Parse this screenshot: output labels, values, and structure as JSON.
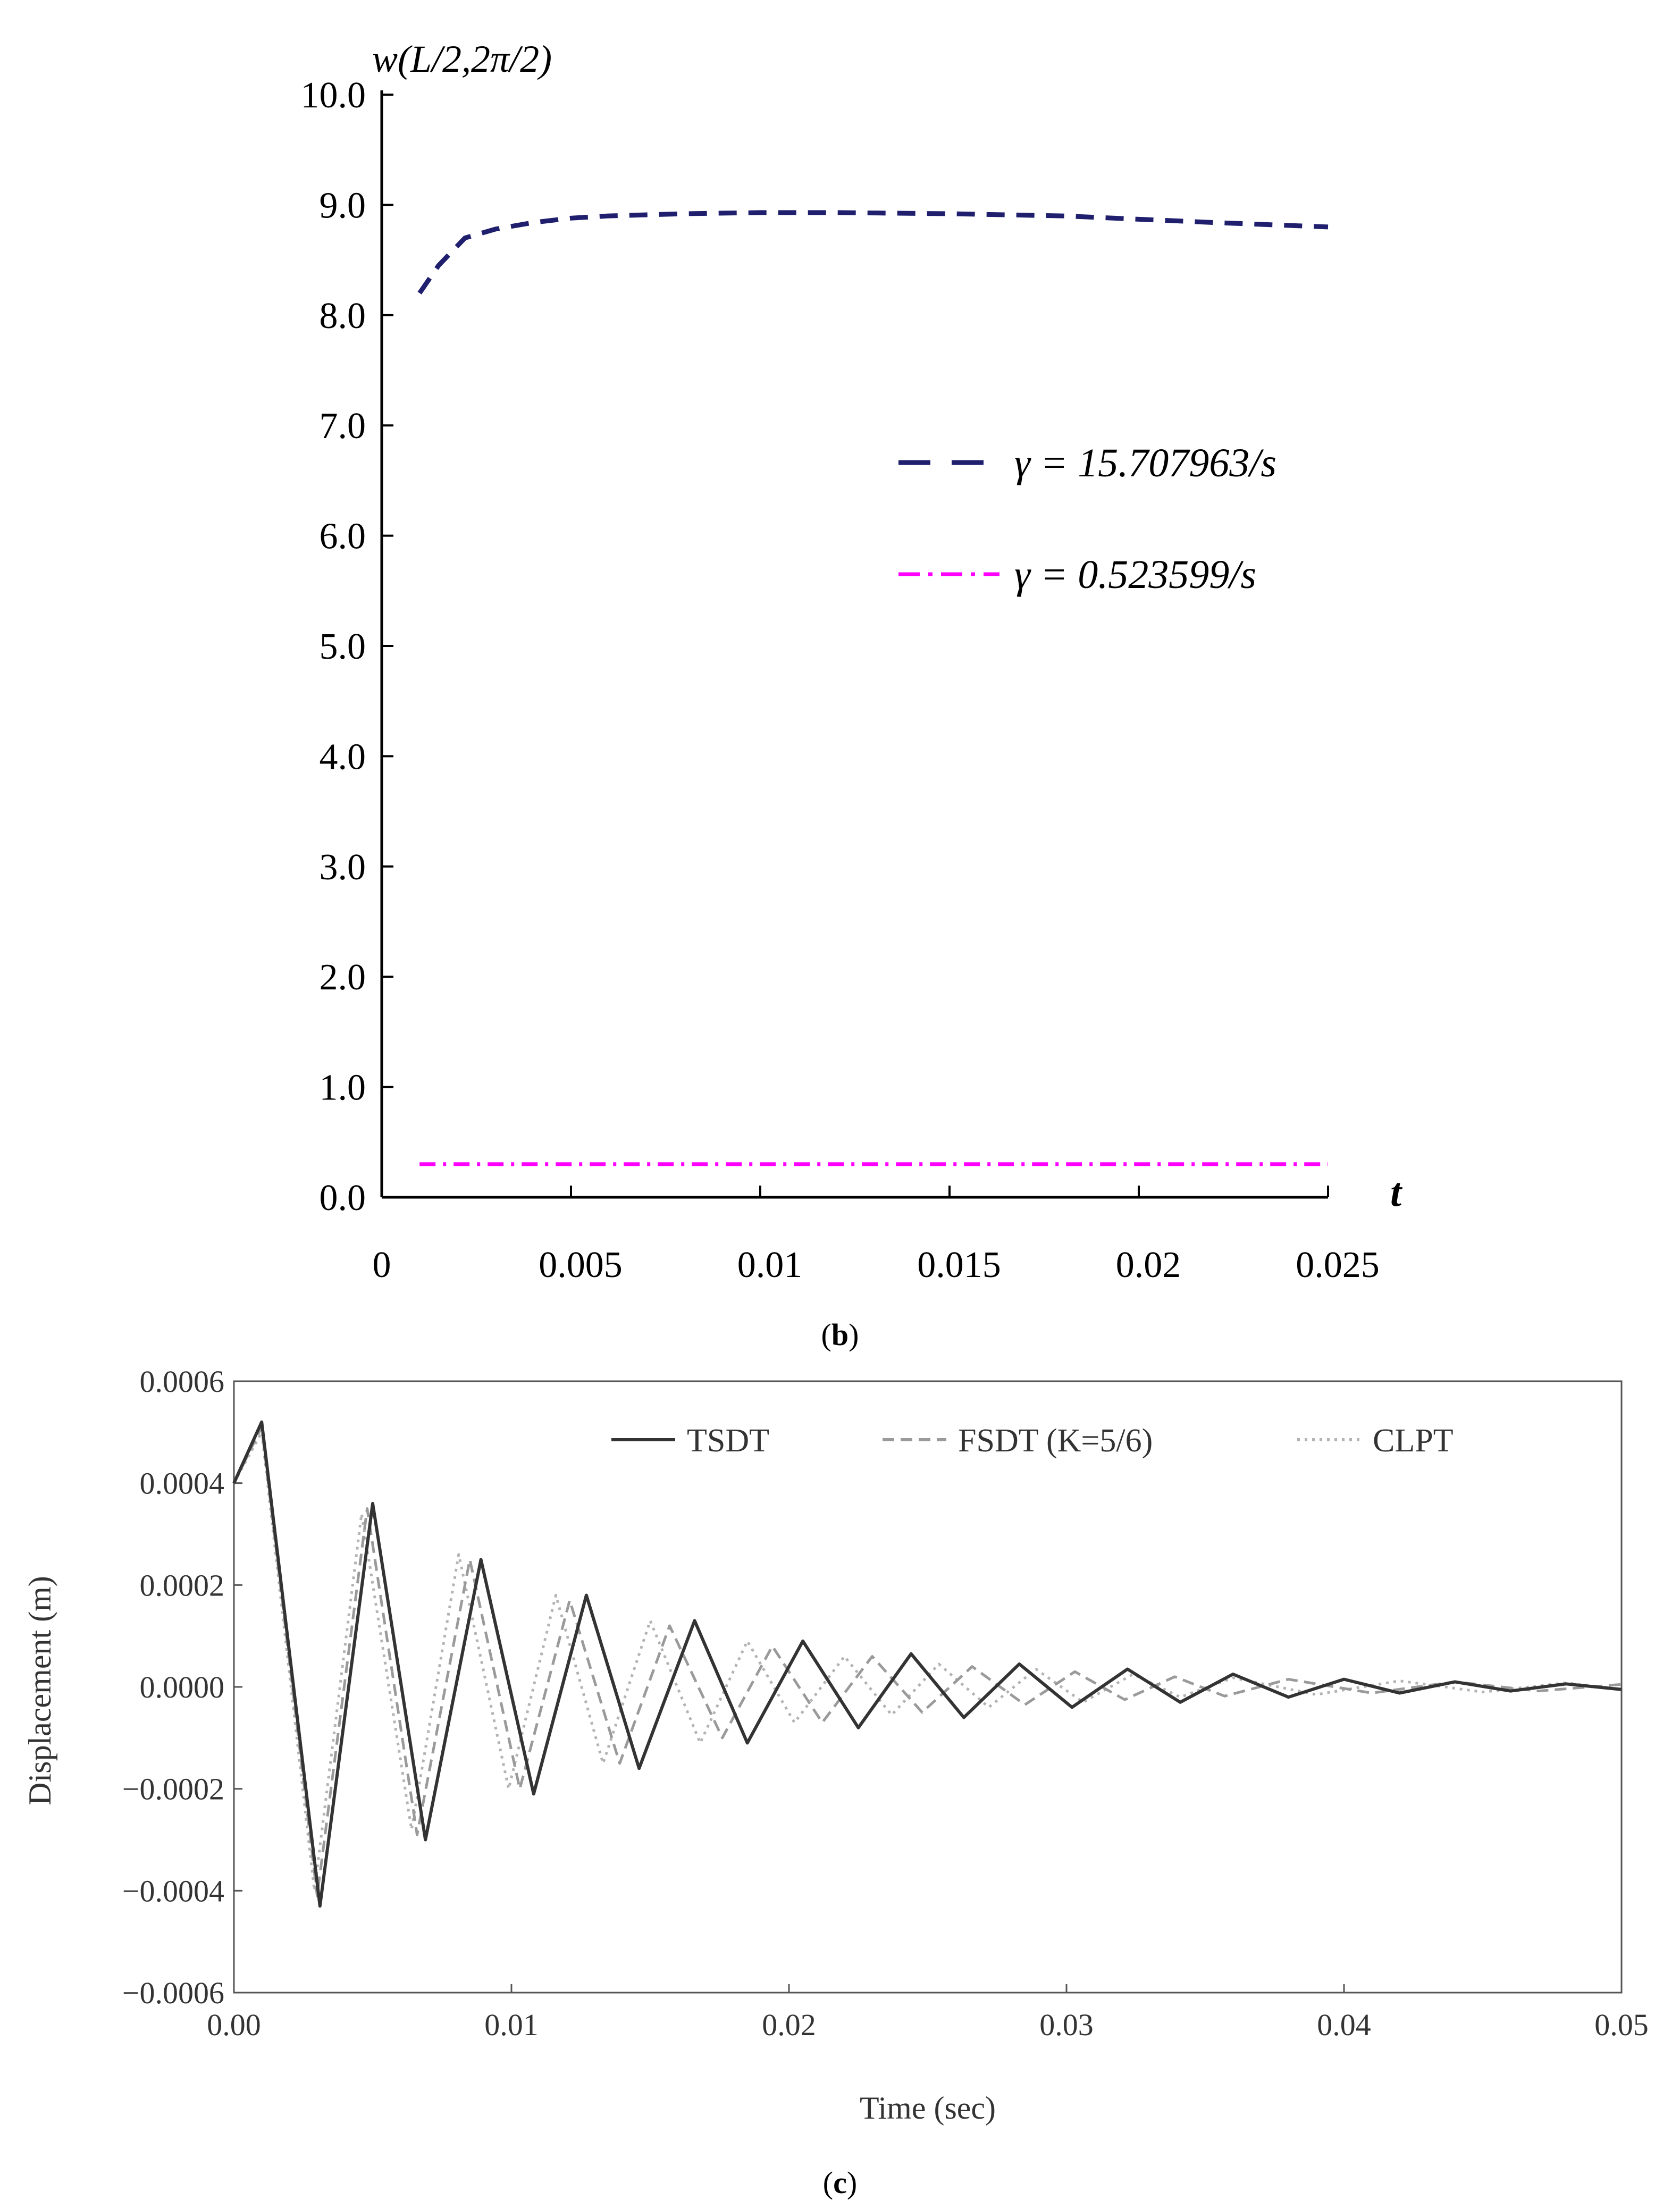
{
  "chart_data": [
    {
      "type": "line",
      "panel_label": "(b)",
      "panel_letter": "b",
      "ylabel": "w(L/2,2π/2)",
      "xlabel": "t",
      "xlim": [
        0,
        0.025
      ],
      "ylim": [
        0,
        10
      ],
      "x_ticks": [
        0,
        0.005,
        0.01,
        0.015,
        0.02,
        0.025
      ],
      "x_tick_labels": [
        "0",
        "0.005",
        "0.01",
        "0.015",
        "0.02",
        "0.025"
      ],
      "y_ticks": [
        0,
        1,
        2,
        3,
        4,
        5,
        6,
        7,
        8,
        9,
        10
      ],
      "y_tick_labels": [
        "0.0",
        "1.0",
        "2.0",
        "3.0",
        "4.0",
        "5.0",
        "6.0",
        "7.0",
        "8.0",
        "9.0",
        "10.0"
      ],
      "legend_position": "center-right",
      "grid": false,
      "series": [
        {
          "name": "γ = 15.707963/s",
          "color": "#1f1f6e",
          "style": "dashed",
          "points": [
            [
              0.001,
              8.2
            ],
            [
              0.0015,
              8.45
            ],
            [
              0.0022,
              8.7
            ],
            [
              0.003,
              8.78
            ],
            [
              0.004,
              8.84
            ],
            [
              0.005,
              8.88
            ],
            [
              0.006,
              8.9
            ],
            [
              0.008,
              8.92
            ],
            [
              0.01,
              8.93
            ],
            [
              0.012,
              8.93
            ],
            [
              0.015,
              8.92
            ],
            [
              0.018,
              8.9
            ],
            [
              0.02,
              8.87
            ],
            [
              0.022,
              8.84
            ],
            [
              0.025,
              8.8
            ]
          ]
        },
        {
          "name": "γ = 0.523599/s",
          "color": "#ff00ff",
          "style": "dashdot",
          "points": [
            [
              0.001,
              0.3
            ],
            [
              0.025,
              0.3
            ]
          ]
        }
      ]
    },
    {
      "type": "line",
      "panel_label": "(c)",
      "panel_letter": "c",
      "xlabel": "Time (sec)",
      "ylabel": "Displacement (m)",
      "xlim": [
        0,
        0.05
      ],
      "ylim": [
        -0.0006,
        0.0006
      ],
      "x_ticks": [
        0,
        0.01,
        0.02,
        0.03,
        0.04,
        0.05
      ],
      "x_tick_labels": [
        "0.00",
        "0.01",
        "0.02",
        "0.03",
        "0.04",
        "0.05"
      ],
      "y_ticks": [
        -0.0006,
        -0.0004,
        -0.0002,
        0,
        0.0002,
        0.0004,
        0.0006
      ],
      "y_tick_labels": [
        "−0.0006",
        "−0.0004",
        "−0.0002",
        "0.0000",
        "0.0002",
        "0.0004",
        "0.0006"
      ],
      "legend_position": "top",
      "grid": false,
      "series": [
        {
          "name": "TSDT",
          "color": "#333333",
          "style": "solid",
          "points": [
            [
              0,
              0.0004
            ],
            [
              0.001,
              0.00052
            ],
            [
              0.0031,
              -0.00043
            ],
            [
              0.005,
              0.00036
            ],
            [
              0.0069,
              -0.0003
            ],
            [
              0.0089,
              0.00025
            ],
            [
              0.0108,
              -0.00021
            ],
            [
              0.0127,
              0.00018
            ],
            [
              0.0146,
              -0.00016
            ],
            [
              0.0166,
              0.00013
            ],
            [
              0.0185,
              -0.00011
            ],
            [
              0.0205,
              9e-05
            ],
            [
              0.0225,
              -8e-05
            ],
            [
              0.0244,
              6.5e-05
            ],
            [
              0.0263,
              -6e-05
            ],
            [
              0.0283,
              4.5e-05
            ],
            [
              0.0302,
              -4e-05
            ],
            [
              0.0322,
              3.5e-05
            ],
            [
              0.0341,
              -3e-05
            ],
            [
              0.036,
              2.5e-05
            ],
            [
              0.038,
              -2e-05
            ],
            [
              0.04,
              1.5e-05
            ],
            [
              0.042,
              -1.2e-05
            ],
            [
              0.044,
              1e-05
            ],
            [
              0.046,
              -8e-06
            ],
            [
              0.048,
              6e-06
            ],
            [
              0.05,
              -5e-06
            ]
          ]
        },
        {
          "name": "FSDT (K=5/6)",
          "color": "#9a9a9a",
          "style": "dashed",
          "points": [
            [
              0,
              0.0004
            ],
            [
              0.001,
              0.00051
            ],
            [
              0.003,
              -0.00041
            ],
            [
              0.0048,
              0.00035
            ],
            [
              0.0066,
              -0.00029
            ],
            [
              0.0085,
              0.00025
            ],
            [
              0.0103,
              -0.0002
            ],
            [
              0.0121,
              0.00017
            ],
            [
              0.0139,
              -0.00015
            ],
            [
              0.0157,
              0.00012
            ],
            [
              0.0176,
              -0.0001
            ],
            [
              0.0194,
              8e-05
            ],
            [
              0.0212,
              -7e-05
            ],
            [
              0.023,
              6e-05
            ],
            [
              0.0248,
              -5e-05
            ],
            [
              0.0266,
              4e-05
            ],
            [
              0.0285,
              -3.5e-05
            ],
            [
              0.0303,
              3e-05
            ],
            [
              0.0321,
              -2.5e-05
            ],
            [
              0.0339,
              2e-05
            ],
            [
              0.0357,
              -1.8e-05
            ],
            [
              0.038,
              1.5e-05
            ],
            [
              0.041,
              -1.2e-05
            ],
            [
              0.044,
              1e-05
            ],
            [
              0.047,
              -8e-06
            ],
            [
              0.05,
              5e-06
            ]
          ]
        },
        {
          "name": "CLPT",
          "color": "#b3b3b3",
          "style": "dotted",
          "points": [
            [
              0,
              0.0004
            ],
            [
              0.001,
              0.0005
            ],
            [
              0.0029,
              -0.0004
            ],
            [
              0.0046,
              0.00034
            ],
            [
              0.0064,
              -0.00028
            ],
            [
              0.0081,
              0.00026
            ],
            [
              0.0099,
              -0.0002
            ],
            [
              0.0116,
              0.00018
            ],
            [
              0.0133,
              -0.00015
            ],
            [
              0.015,
              0.00013
            ],
            [
              0.0168,
              -0.00011
            ],
            [
              0.0185,
              9e-05
            ],
            [
              0.0202,
              -7e-05
            ],
            [
              0.022,
              6e-05
            ],
            [
              0.0237,
              -5.5e-05
            ],
            [
              0.0254,
              4.5e-05
            ],
            [
              0.0272,
              -4e-05
            ],
            [
              0.0289,
              3.5e-05
            ],
            [
              0.0306,
              -3e-05
            ],
            [
              0.0324,
              2.5e-05
            ],
            [
              0.0341,
              -2e-05
            ],
            [
              0.036,
              1.8e-05
            ],
            [
              0.039,
              -1.5e-05
            ],
            [
              0.042,
              1.2e-05
            ],
            [
              0.045,
              -1e-05
            ],
            [
              0.048,
              8e-06
            ],
            [
              0.05,
              -5e-06
            ]
          ]
        }
      ]
    }
  ]
}
